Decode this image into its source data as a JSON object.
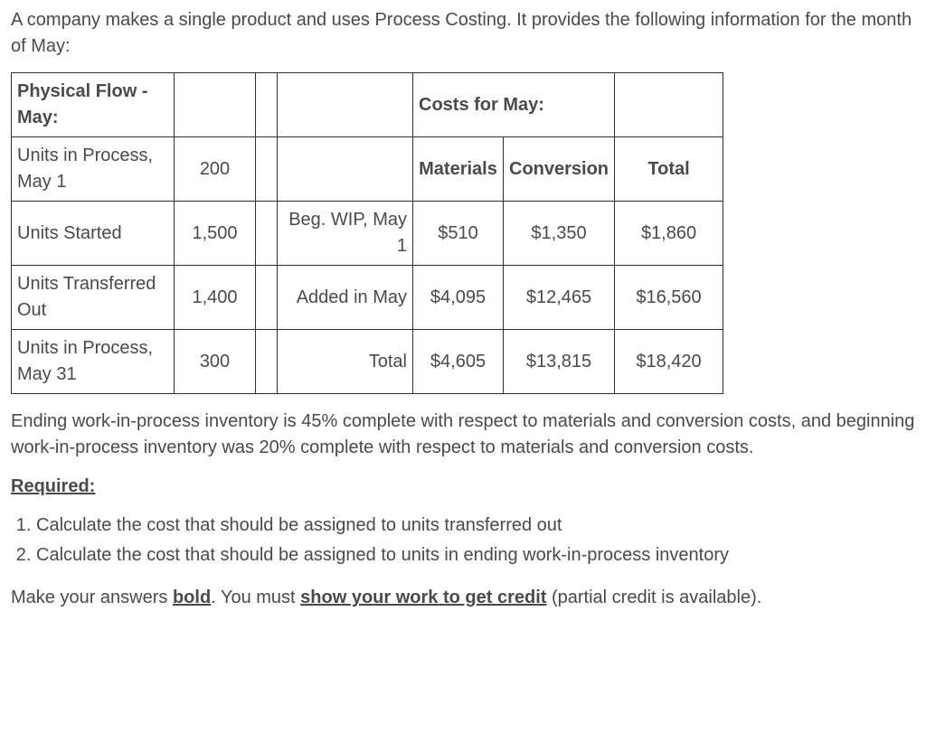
{
  "intro": "A company makes a single product and uses Process Costing.  It provides the following information for the month of May:",
  "table": {
    "head_left": "Physical Flow - May:",
    "head_right": "Costs for May:",
    "col_materials": "Materials",
    "col_conversion": "Conversion",
    "col_total": "Total",
    "rows": [
      {
        "label": "Units in Process, May 1",
        "units": "200",
        "desc": "",
        "mat": "",
        "conv": "",
        "tot": ""
      },
      {
        "label": "Units Started",
        "units": "1,500",
        "desc": "Beg. WIP, May 1",
        "mat": "$510",
        "conv": "$1,350",
        "tot": "$1,860"
      },
      {
        "label": "Units Transferred Out",
        "units": "1,400",
        "desc": "Added in May",
        "mat": "$4,095",
        "conv": "$12,465",
        "tot": "$16,560"
      },
      {
        "label": "Units in Process, May 31",
        "units": "300",
        "desc": "Total",
        "mat": "$4,605",
        "conv": "$13,815",
        "tot": "$18,420"
      }
    ]
  },
  "completion_note": " Ending work-in-process inventory is 45% complete with respect to materials and conversion costs, and beginning work-in-process inventory was 20% complete with respect to materials and conversion costs.",
  "required_label": "Required:",
  "questions": [
    "Calculate the cost that should be assigned to units transferred out",
    "Calculate the cost that should be assigned to units in ending work-in-process inventory"
  ],
  "footer_pre": "Make your answers ",
  "footer_bold": "bold",
  "footer_mid": ".  You must ",
  "footer_show": "show your work to get credit",
  "footer_post": " (partial credit is available)."
}
